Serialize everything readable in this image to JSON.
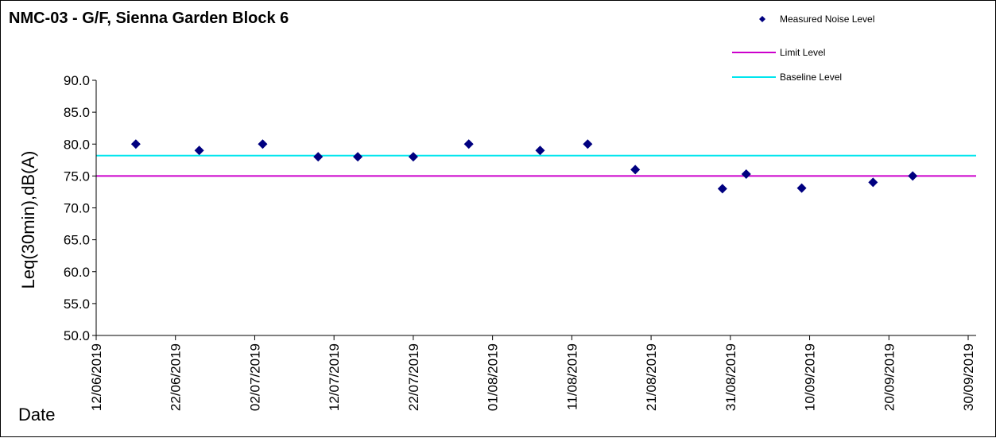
{
  "chart_data": {
    "type": "scatter",
    "title": "NMC-03 - G/F, Sienna Garden Block 6",
    "xlabel": "Date",
    "ylabel": "Leq(30min),dB(A)",
    "ylim": [
      50,
      90
    ],
    "yticks": [
      "50.0",
      "55.0",
      "60.0",
      "65.0",
      "70.0",
      "75.0",
      "80.0",
      "85.0",
      "90.0"
    ],
    "xlim": [
      "2019-06-12",
      "2019-09-30"
    ],
    "xticks": [
      {
        "date": "2019-06-12",
        "label": "12/06/2019"
      },
      {
        "date": "2019-06-22",
        "label": "22/06/2019"
      },
      {
        "date": "2019-07-02",
        "label": "02/07/2019"
      },
      {
        "date": "2019-07-12",
        "label": "12/07/2019"
      },
      {
        "date": "2019-07-22",
        "label": "22/07/2019"
      },
      {
        "date": "2019-08-01",
        "label": "01/08/2019"
      },
      {
        "date": "2019-08-11",
        "label": "11/08/2019"
      },
      {
        "date": "2019-08-21",
        "label": "21/08/2019"
      },
      {
        "date": "2019-08-31",
        "label": "31/08/2019"
      },
      {
        "date": "2019-09-10",
        "label": "10/09/2019"
      },
      {
        "date": "2019-09-20",
        "label": "20/09/2019"
      },
      {
        "date": "2019-09-30",
        "label": "30/09/2019"
      }
    ],
    "grid": false,
    "legend_position": "top-right",
    "series": [
      {
        "name": "Measured Noise Level",
        "kind": "markers",
        "color": "#000080",
        "points": [
          {
            "x": "2019-06-17",
            "y": 80.0
          },
          {
            "x": "2019-06-25",
            "y": 79.0
          },
          {
            "x": "2019-07-03",
            "y": 80.0
          },
          {
            "x": "2019-07-10",
            "y": 78.0
          },
          {
            "x": "2019-07-15",
            "y": 78.0
          },
          {
            "x": "2019-07-22",
            "y": 78.0
          },
          {
            "x": "2019-07-29",
            "y": 80.0
          },
          {
            "x": "2019-08-07",
            "y": 79.0
          },
          {
            "x": "2019-08-13",
            "y": 80.0
          },
          {
            "x": "2019-08-19",
            "y": 76.0
          },
          {
            "x": "2019-08-30",
            "y": 73.0
          },
          {
            "x": "2019-09-02",
            "y": 75.3
          },
          {
            "x": "2019-09-09",
            "y": 73.1
          },
          {
            "x": "2019-09-18",
            "y": 74.0
          },
          {
            "x": "2019-09-23",
            "y": 75.0
          }
        ]
      },
      {
        "name": "Limit Level",
        "kind": "hline",
        "color": "#CC00CC",
        "y": 75.0
      },
      {
        "name": "Baseline Level",
        "kind": "hline",
        "color": "#00E5EE",
        "y": 78.2
      }
    ]
  }
}
